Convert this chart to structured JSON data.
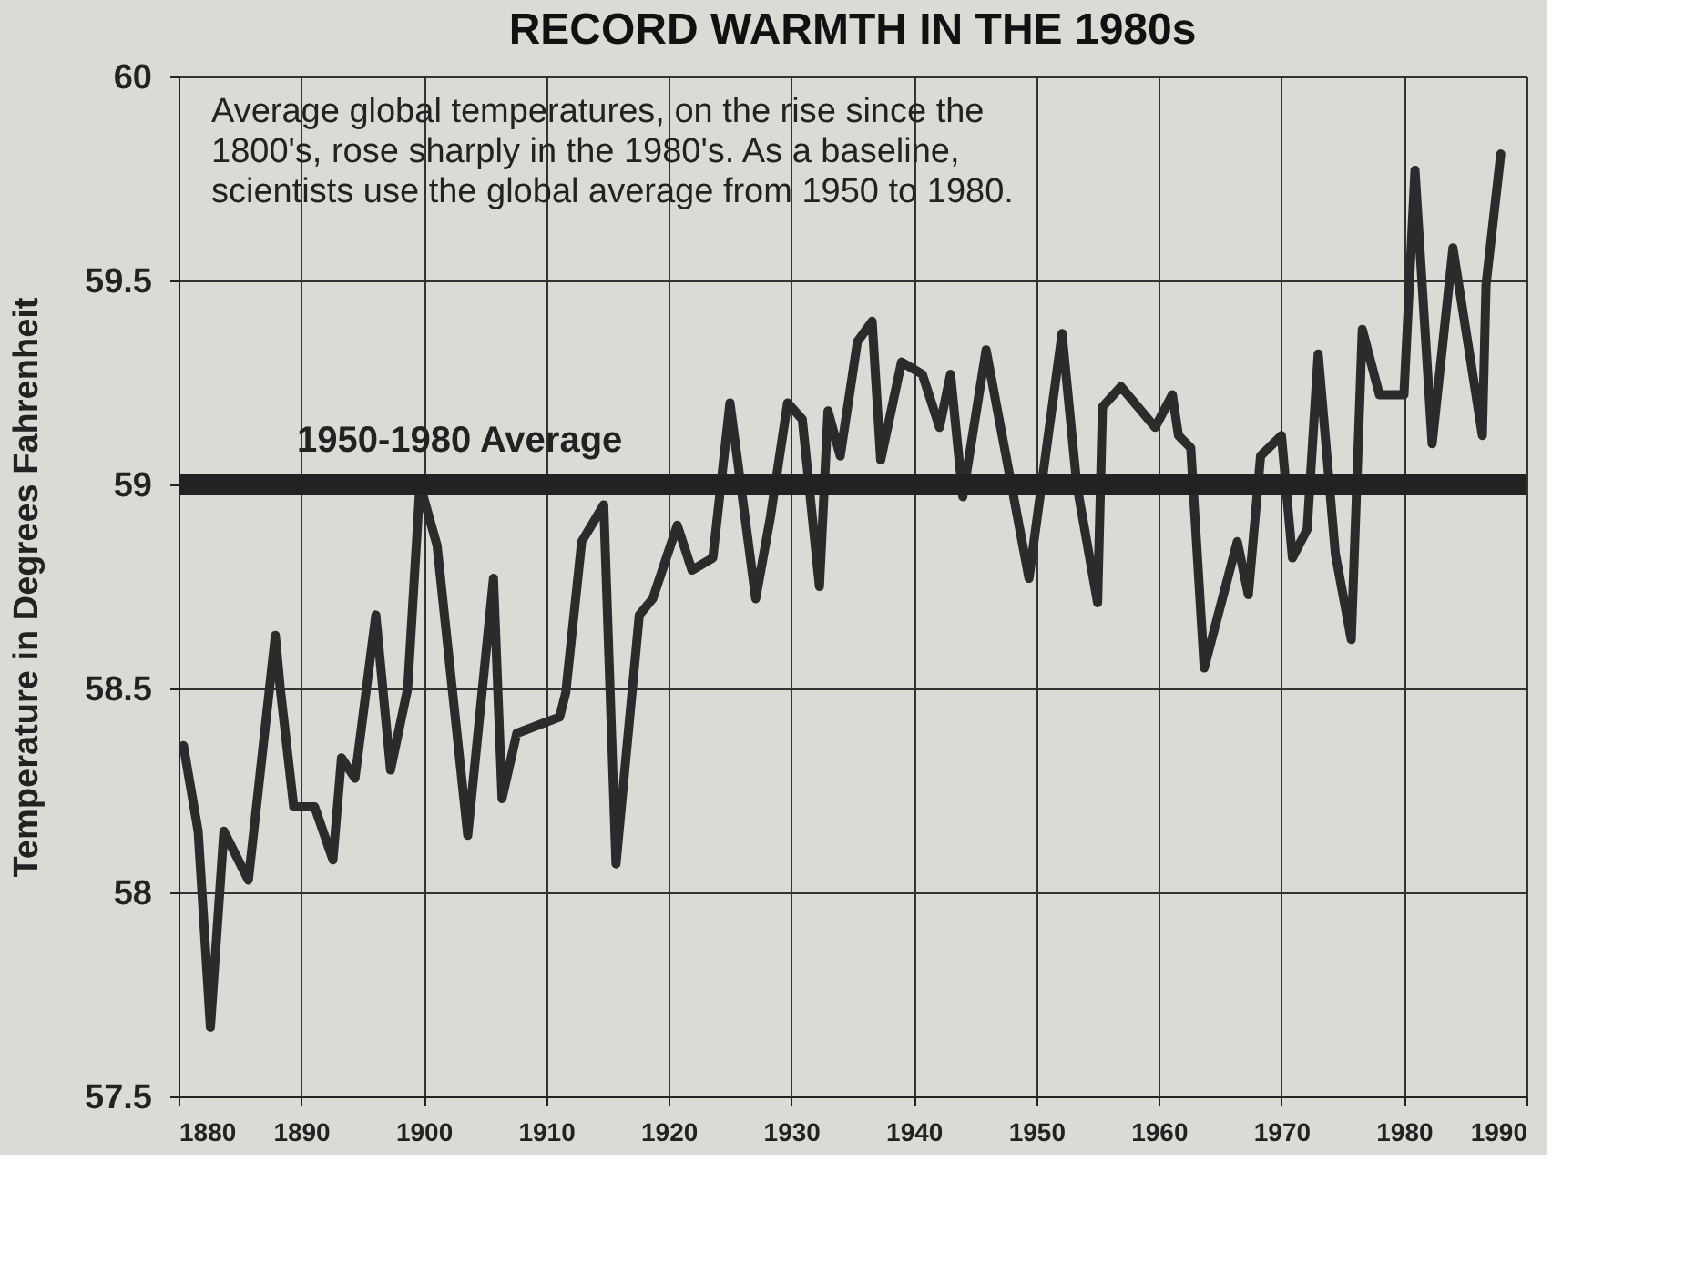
{
  "chart_data": {
    "type": "line",
    "title": "RECORD WARMTH IN THE 1980s",
    "ylabel": "Temperature in Degrees Fahrenheit",
    "annotations": [
      "Average global temperatures, on the rise since the 1800's, rose sharply in the 1980's. As a baseline, scientists use the global average from 1950 to 1980."
    ],
    "xlim": [
      1880,
      1990
    ],
    "xticks": [
      1880,
      1890,
      1900,
      1910,
      1920,
      1930,
      1940,
      1950,
      1960,
      1970,
      1980,
      1990
    ],
    "ylim": [
      57.5,
      60
    ],
    "yticks": [
      57.5,
      58,
      58.5,
      59,
      59.5,
      60
    ],
    "grid": true,
    "line_style": "solid",
    "marker": "none",
    "ref_lines": [
      {
        "axis": "y",
        "value": 59.0,
        "label": "1950-1980 Average",
        "color": "#222222"
      }
    ],
    "series": [
      {
        "color": "#2b2b2b",
        "x": [
          1880.4,
          1881.6,
          1882.6,
          1883.7,
          1885.7,
          1887.9,
          1888.3,
          1889.4,
          1891.1,
          1892.6,
          1893.3,
          1894.4,
          1896.1,
          1897.3,
          1898.7,
          1899.7,
          1901.1,
          1903.6,
          1905.7,
          1906.4,
          1907.6,
          1911.1,
          1911.6,
          1912.9,
          1914.7,
          1915.7,
          1917.6,
          1918.7,
          1920.7,
          1921.9,
          1923.6,
          1925.0,
          1927.1,
          1928.3,
          1929.7,
          1930.9,
          1932.3,
          1933.0,
          1934.0,
          1935.4,
          1936.6,
          1937.3,
          1939.0,
          1940.7,
          1942.1,
          1943.0,
          1944.0,
          1945.9,
          1949.4,
          1952.1,
          1953.3,
          1955.0,
          1955.4,
          1956.9,
          1959.7,
          1961.1,
          1961.6,
          1962.6,
          1963.7,
          1966.4,
          1967.3,
          1968.3,
          1970.0,
          1970.9,
          1972.1,
          1973.0,
          1974.4,
          1975.7,
          1976.6,
          1978.0,
          1980.0,
          1980.9,
          1982.3,
          1984.0,
          1986.4,
          1986.7,
          1987.9
        ],
        "values": [
          58.36,
          58.15,
          57.67,
          58.15,
          58.03,
          58.63,
          58.5,
          58.21,
          58.21,
          58.08,
          58.33,
          58.28,
          58.68,
          58.3,
          58.5,
          59.0,
          58.85,
          58.14,
          58.77,
          58.23,
          58.39,
          58.43,
          58.49,
          58.86,
          58.95,
          58.07,
          58.68,
          58.72,
          58.9,
          58.79,
          58.82,
          59.2,
          58.72,
          58.92,
          59.2,
          59.16,
          58.75,
          59.18,
          59.07,
          59.35,
          59.4,
          59.06,
          59.3,
          59.27,
          59.14,
          59.27,
          58.97,
          59.33,
          58.77,
          59.37,
          59.0,
          58.71,
          59.19,
          59.24,
          59.14,
          59.22,
          59.12,
          59.09,
          58.55,
          58.86,
          58.73,
          59.07,
          59.12,
          58.82,
          58.89,
          59.32,
          58.83,
          58.62,
          59.38,
          59.22,
          59.22,
          59.77,
          59.1,
          59.58,
          59.12,
          59.49,
          59.81
        ]
      }
    ]
  }
}
